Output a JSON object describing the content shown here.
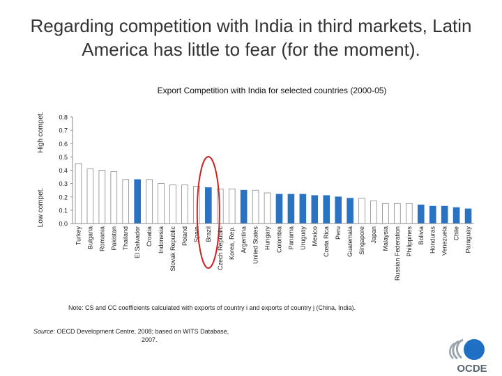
{
  "slide": {
    "title": "Regarding competition with India in third markets, Latin America has little to fear (for the moment)."
  },
  "chart_data": {
    "type": "bar",
    "title": "Export Competition with India for selected countries (2000-05)",
    "ylabel_high": "High compet.",
    "ylabel_low": "Low compet.",
    "ylim": [
      0,
      0.8
    ],
    "yticks": [
      0.0,
      0.1,
      0.2,
      0.3,
      0.4,
      0.5,
      0.6,
      0.7,
      0.8
    ],
    "ytick_labels": [
      "0.0",
      "0.1",
      "0.2",
      "0.3",
      "0.4",
      "0.5",
      "0.6",
      "0.7",
      "0.8"
    ],
    "categories": [
      "Turkey",
      "Bulgaria",
      "Romania",
      "Pakistan",
      "Thailand",
      "El Salvador",
      "Croatia",
      "Indonesia",
      "Slovak Republic",
      "Poland",
      "Spain",
      "Brazil",
      "Czech Republic",
      "Korea, Rep.",
      "Argentina",
      "United States",
      "Hungary",
      "Colombia",
      "Panama",
      "Uruguay",
      "Mexico",
      "Costa Rica",
      "Peru",
      "Guatemala",
      "Singapore",
      "Japan",
      "Malaysia",
      "Russian Federation",
      "Philippines",
      "Bolivia",
      "Honduras",
      "Venezuela",
      "Chile",
      "Paraguay"
    ],
    "values": [
      0.45,
      0.41,
      0.4,
      0.39,
      0.33,
      0.33,
      0.33,
      0.3,
      0.29,
      0.29,
      0.28,
      0.27,
      0.26,
      0.26,
      0.25,
      0.25,
      0.23,
      0.22,
      0.22,
      0.22,
      0.21,
      0.21,
      0.2,
      0.19,
      0.19,
      0.17,
      0.15,
      0.15,
      0.15,
      0.14,
      0.13,
      0.13,
      0.12,
      0.11
    ],
    "latin_america": [
      false,
      false,
      false,
      false,
      false,
      true,
      false,
      false,
      false,
      false,
      false,
      true,
      false,
      false,
      true,
      false,
      false,
      true,
      true,
      true,
      true,
      true,
      true,
      true,
      false,
      false,
      false,
      false,
      false,
      true,
      true,
      true,
      true,
      true
    ],
    "highlighted_category": "Brazil",
    "colors": {
      "latin_america": "#2a73c2",
      "other": "#ffffff",
      "bar_stroke": "#888888",
      "highlight_ellipse": "#cc2222",
      "axis": "#888888"
    }
  },
  "note": "Note: CS and CC coefficients calculated with exports of country i and exports of country j (China, India).",
  "source": {
    "label": "Source",
    "text": ": OECD Development Centre, 2008; based on WITS Database,",
    "year": "2007."
  },
  "logo": {
    "text": "OCDE",
    "icon": "oecd-logo-icon"
  }
}
